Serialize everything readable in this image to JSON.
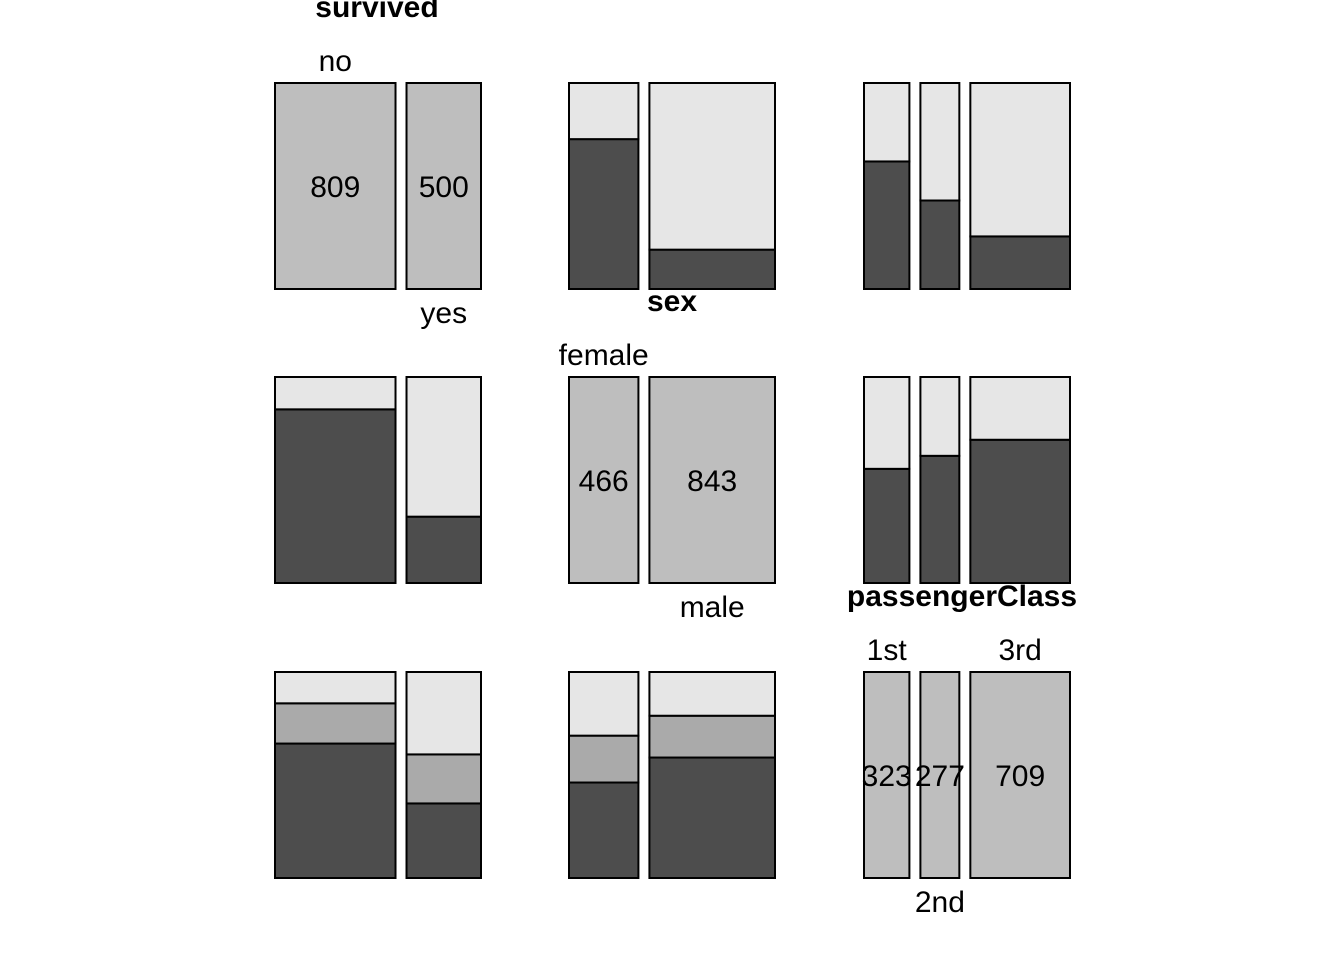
{
  "chart_data": {
    "type": "pairs-mosaic",
    "colors": {
      "diagonal": "#bebebe",
      "light": "#e6e6e6",
      "mid": "#aaaaaa",
      "dark": "#4d4d4d",
      "stroke": "#000000"
    },
    "variables": [
      {
        "name": "survived",
        "levels": [
          "no",
          "yes"
        ],
        "counts": [
          809,
          500
        ]
      },
      {
        "name": "sex",
        "levels": [
          "female",
          "male"
        ],
        "counts": [
          466,
          843
        ]
      },
      {
        "name": "passengerClass",
        "levels": [
          "1st",
          "2nd",
          "3rd"
        ],
        "counts": [
          323,
          277,
          709
        ]
      }
    ],
    "crosstabs": {
      "survived_by_sex": {
        "rows": [
          "no",
          "yes"
        ],
        "cols": [
          "female",
          "male"
        ],
        "values": [
          [
            127,
            682
          ],
          [
            339,
            161
          ]
        ]
      },
      "survived_by_class": {
        "rows": [
          "no",
          "yes"
        ],
        "cols": [
          "1st",
          "2nd",
          "3rd"
        ],
        "values": [
          [
            123,
            158,
            528
          ],
          [
            200,
            119,
            181
          ]
        ]
      },
      "sex_by_class": {
        "rows": [
          "female",
          "male"
        ],
        "cols": [
          "1st",
          "2nd",
          "3rd"
        ],
        "values": [
          [
            144,
            106,
            216
          ],
          [
            179,
            171,
            493
          ]
        ]
      }
    }
  }
}
